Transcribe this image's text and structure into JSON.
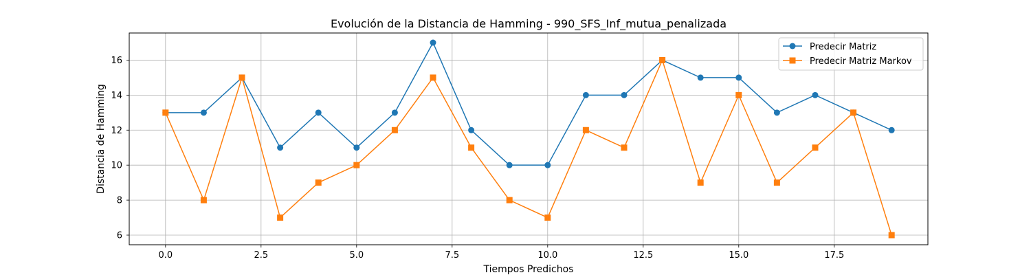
{
  "chart_data": {
    "type": "line",
    "title": "Evolución de la Distancia de Hamming - 990_SFS_Inf_mutua_penalizada",
    "xlabel": "Tiempos Predichos",
    "ylabel": "Distancia de Hamming",
    "x": [
      0,
      1,
      2,
      3,
      4,
      5,
      6,
      7,
      8,
      9,
      10,
      11,
      12,
      13,
      14,
      15,
      16,
      17,
      18,
      19
    ],
    "xlim": [
      -0.95,
      19.95
    ],
    "ylim": [
      5.45,
      17.55
    ],
    "xticks": [
      0.0,
      2.5,
      5.0,
      7.5,
      10.0,
      12.5,
      15.0,
      17.5
    ],
    "xtick_labels": [
      "0.0",
      "2.5",
      "5.0",
      "7.5",
      "10.0",
      "12.5",
      "15.0",
      "17.5"
    ],
    "yticks": [
      6,
      8,
      10,
      12,
      14,
      16
    ],
    "ytick_labels": [
      "6",
      "8",
      "10",
      "12",
      "14",
      "16"
    ],
    "grid": true,
    "legend_position": "top-right",
    "series": [
      {
        "name": "Predecir Matriz",
        "color": "#1f77b4",
        "marker": "circle",
        "values": [
          13,
          13,
          15,
          11,
          13,
          11,
          13,
          17,
          12,
          10,
          10,
          14,
          14,
          16,
          15,
          15,
          13,
          14,
          13,
          12
        ]
      },
      {
        "name": "Predecir Matriz Markov",
        "color": "#ff7f0e",
        "marker": "square",
        "values": [
          13,
          8,
          15,
          7,
          9,
          10,
          12,
          15,
          11,
          8,
          7,
          12,
          11,
          16,
          9,
          14,
          9,
          11,
          13,
          6
        ]
      }
    ]
  }
}
